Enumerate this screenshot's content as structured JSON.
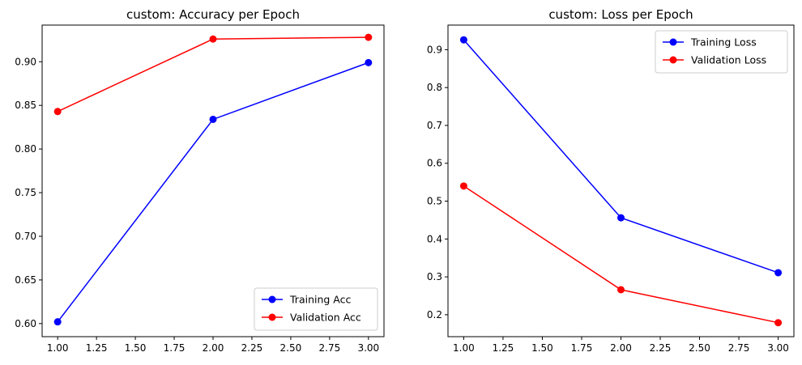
{
  "chart_data": [
    {
      "type": "line",
      "title": "custom: Accuracy per Epoch",
      "xlabel": "",
      "ylabel": "",
      "x": [
        1.0,
        2.0,
        3.0
      ],
      "xlim": [
        0.9,
        3.1
      ],
      "ylim": [
        0.585,
        0.942
      ],
      "xticks": [
        1.0,
        1.25,
        1.5,
        1.75,
        2.0,
        2.25,
        2.5,
        2.75,
        3.0
      ],
      "xtick_labels": [
        "1.00",
        "1.25",
        "1.50",
        "1.75",
        "2.00",
        "2.25",
        "2.50",
        "2.75",
        "3.00"
      ],
      "yticks": [
        0.6,
        0.65,
        0.7,
        0.75,
        0.8,
        0.85,
        0.9
      ],
      "ytick_labels": [
        "0.60",
        "0.65",
        "0.70",
        "0.75",
        "0.80",
        "0.85",
        "0.90"
      ],
      "grid": false,
      "legend_position": "lower-right",
      "series": [
        {
          "name": "Training Acc",
          "color": "#0000ff",
          "marker": "circle",
          "values": [
            0.602,
            0.834,
            0.899
          ]
        },
        {
          "name": "Validation Acc",
          "color": "#ff0000",
          "marker": "circle",
          "values": [
            0.843,
            0.926,
            0.928
          ]
        }
      ]
    },
    {
      "type": "line",
      "title": "custom: Loss per Epoch",
      "xlabel": "",
      "ylabel": "",
      "x": [
        1.0,
        2.0,
        3.0
      ],
      "xlim": [
        0.9,
        3.1
      ],
      "ylim": [
        0.142,
        0.965
      ],
      "xticks": [
        1.0,
        1.25,
        1.5,
        1.75,
        2.0,
        2.25,
        2.5,
        2.75,
        3.0
      ],
      "xtick_labels": [
        "1.00",
        "1.25",
        "1.50",
        "1.75",
        "2.00",
        "2.25",
        "2.50",
        "2.75",
        "3.00"
      ],
      "yticks": [
        0.2,
        0.3,
        0.4,
        0.5,
        0.6,
        0.7,
        0.8,
        0.9
      ],
      "ytick_labels": [
        "0.2",
        "0.3",
        "0.4",
        "0.5",
        "0.6",
        "0.7",
        "0.8",
        "0.9"
      ],
      "grid": false,
      "legend_position": "upper-right",
      "series": [
        {
          "name": "Training Loss",
          "color": "#0000ff",
          "marker": "circle",
          "values": [
            0.926,
            0.456,
            0.311
          ]
        },
        {
          "name": "Validation Loss",
          "color": "#ff0000",
          "marker": "circle",
          "values": [
            0.54,
            0.266,
            0.179
          ]
        }
      ]
    }
  ]
}
